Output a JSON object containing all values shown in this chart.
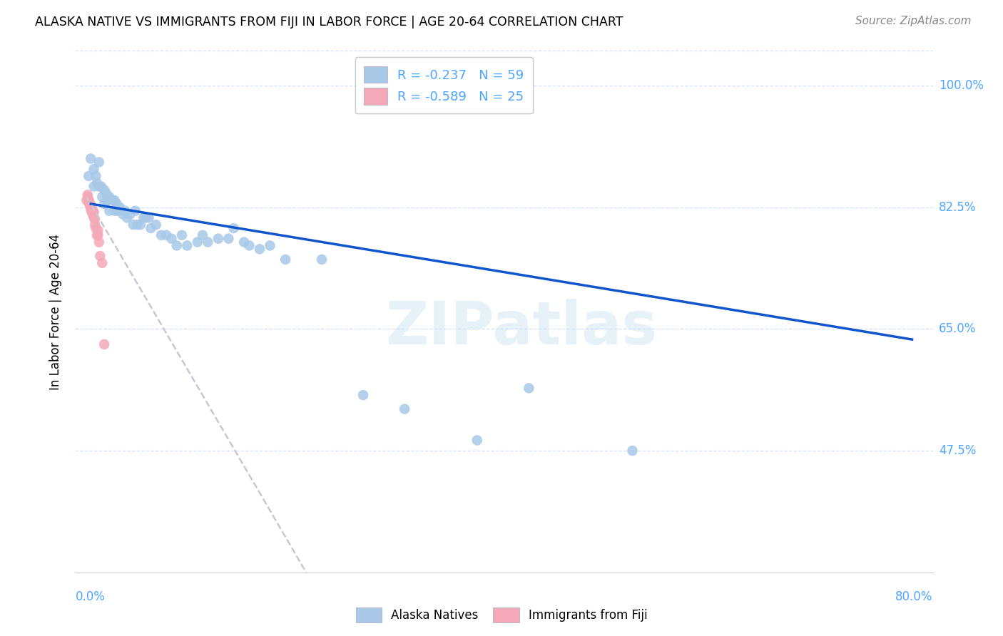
{
  "title": "ALASKA NATIVE VS IMMIGRANTS FROM FIJI IN LABOR FORCE | AGE 20-64 CORRELATION CHART",
  "source": "Source: ZipAtlas.com",
  "ylabel": "In Labor Force | Age 20-64",
  "R_alaska": -0.237,
  "N_alaska": 59,
  "R_fiji": -0.589,
  "N_fiji": 25,
  "alaska_color": "#a8c8e8",
  "fiji_color": "#f4a8b8",
  "alaska_line_color": "#1155cc",
  "fiji_line_color": "#c8c8d0",
  "watermark": "ZIPatlas",
  "xlim": [
    -0.008,
    0.82
  ],
  "ylim": [
    0.3,
    1.05
  ],
  "ytick_positions": [
    0.475,
    0.65,
    0.825,
    1.0
  ],
  "ytick_labels": [
    "47.5%",
    "65.0%",
    "82.5%",
    "100.0%"
  ],
  "tick_color": "#4da6ff",
  "grid_color": "#d0e4ff",
  "alaska_natives_x": [
    0.005,
    0.007,
    0.01,
    0.01,
    0.012,
    0.013,
    0.015,
    0.015,
    0.017,
    0.018,
    0.02,
    0.02,
    0.022,
    0.023,
    0.025,
    0.025,
    0.028,
    0.03,
    0.03,
    0.032,
    0.033,
    0.035,
    0.037,
    0.038,
    0.04,
    0.042,
    0.045,
    0.048,
    0.05,
    0.052,
    0.055,
    0.058,
    0.06,
    0.063,
    0.065,
    0.07,
    0.075,
    0.08,
    0.085,
    0.09,
    0.095,
    0.1,
    0.11,
    0.115,
    0.12,
    0.13,
    0.14,
    0.145,
    0.155,
    0.16,
    0.17,
    0.18,
    0.195,
    0.23,
    0.27,
    0.31,
    0.38,
    0.43,
    0.53
  ],
  "alaska_natives_y": [
    0.87,
    0.895,
    0.88,
    0.855,
    0.87,
    0.86,
    0.89,
    0.855,
    0.855,
    0.84,
    0.85,
    0.83,
    0.845,
    0.835,
    0.84,
    0.82,
    0.835,
    0.835,
    0.82,
    0.83,
    0.82,
    0.825,
    0.82,
    0.815,
    0.82,
    0.81,
    0.815,
    0.8,
    0.82,
    0.8,
    0.8,
    0.81,
    0.81,
    0.81,
    0.795,
    0.8,
    0.785,
    0.785,
    0.78,
    0.77,
    0.785,
    0.77,
    0.775,
    0.785,
    0.775,
    0.78,
    0.78,
    0.795,
    0.775,
    0.77,
    0.765,
    0.77,
    0.75,
    0.75,
    0.555,
    0.535,
    0.49,
    0.565,
    0.475
  ],
  "fiji_immigrants_x": [
    0.003,
    0.004,
    0.004,
    0.005,
    0.005,
    0.006,
    0.006,
    0.007,
    0.007,
    0.008,
    0.008,
    0.009,
    0.009,
    0.01,
    0.01,
    0.011,
    0.011,
    0.012,
    0.013,
    0.014,
    0.014,
    0.015,
    0.016,
    0.018,
    0.02
  ],
  "fiji_immigrants_y": [
    0.835,
    0.84,
    0.843,
    0.832,
    0.836,
    0.828,
    0.832,
    0.822,
    0.828,
    0.818,
    0.825,
    0.815,
    0.82,
    0.81,
    0.818,
    0.8,
    0.808,
    0.795,
    0.785,
    0.785,
    0.792,
    0.775,
    0.755,
    0.745,
    0.628
  ]
}
